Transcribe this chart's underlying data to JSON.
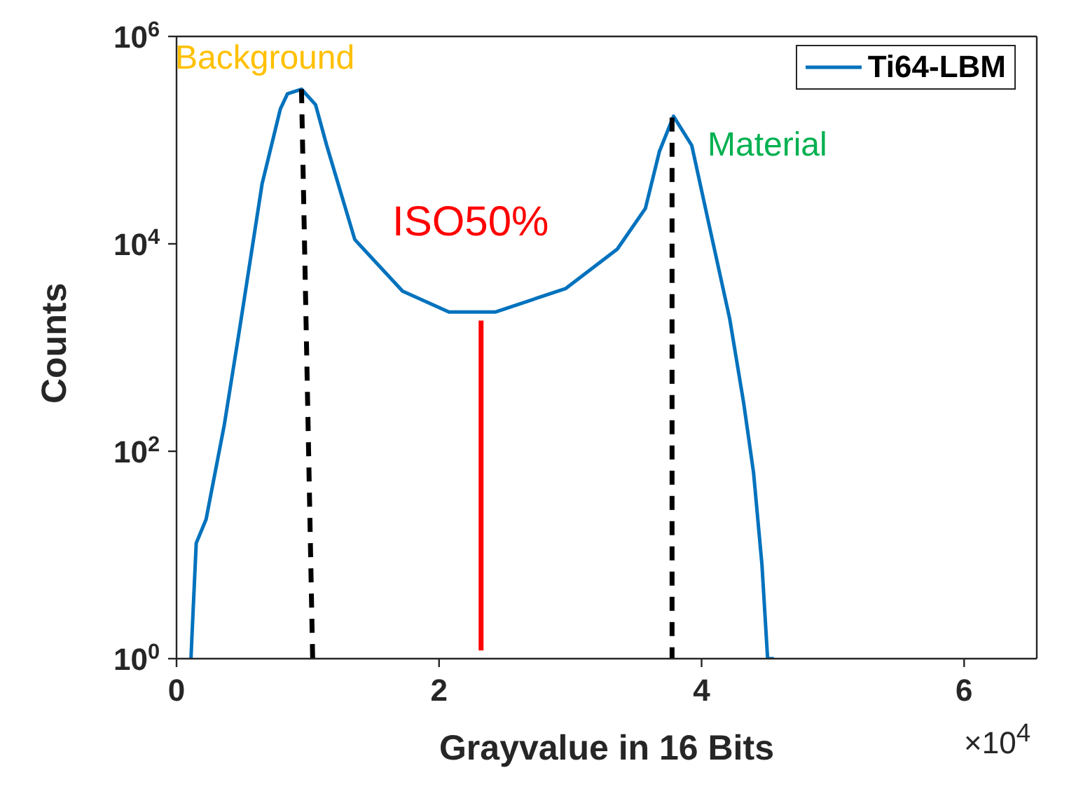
{
  "chart_data": {
    "type": "line",
    "xlabel": "Grayvalue in 16 Bits",
    "ylabel": "Counts",
    "xlim": [
      0,
      6.5535
    ],
    "xticks": [
      0,
      2,
      4,
      6
    ],
    "ylim": [
      1,
      1000000
    ],
    "yticks": [
      {
        "value": 1,
        "label": "10$^{0}$"
      },
      {
        "value": 100,
        "label": "10$^{2}$"
      },
      {
        "value": 10000,
        "label": "10$^{4}$"
      },
      {
        "value": 1000000,
        "label": "10$^{6}$"
      }
    ],
    "log": "y",
    "legend": "top right",
    "marker": "none",
    "series": [
      {
        "name": "Ti64-LBM",
        "color": "#0072bd",
        "line_style": "solid",
        "x": [
          0.11,
          0.118,
          0.15,
          0.225,
          0.364,
          0.471,
          0.503,
          0.652,
          0.791,
          0.845,
          0.952,
          1.059,
          1.144,
          1.358,
          1.722,
          2.075,
          2.428,
          2.963,
          3.358,
          3.572,
          3.679,
          3.786,
          3.925,
          4.075,
          4.214,
          4.321,
          4.396,
          4.46,
          4.503,
          4.55
        ],
        "values": [
          1,
          1.7,
          13,
          22,
          180,
          1270,
          2300,
          38000,
          200000,
          280000,
          310000,
          220000,
          89000,
          11000,
          3500,
          2200,
          2200,
          3700,
          8900,
          22000,
          78000,
          170000,
          89000,
          12000,
          1900,
          290,
          62,
          8,
          1,
          1
        ]
      },
      {
        "type": "line",
        "color": "#000000",
        "line_style": "dashed",
        "x": [
          0.952,
          1.037
        ],
        "values": [
          310000,
          1
        ]
      },
      {
        "type": "line",
        "color": "#000000",
        "line_style": "dashed",
        "x": [
          3.775,
          3.775
        ],
        "values": [
          165000,
          1
        ]
      },
      {
        "type": "line",
        "color": "#ff0000",
        "line_style": "solid",
        "x": [
          2.32,
          2.32
        ],
        "values": [
          1820,
          1.2
        ]
      }
    ],
    "annotations": [
      "Background",
      "ISO50%",
      "Material",
      "×10$^{4}$"
    ]
  }
}
